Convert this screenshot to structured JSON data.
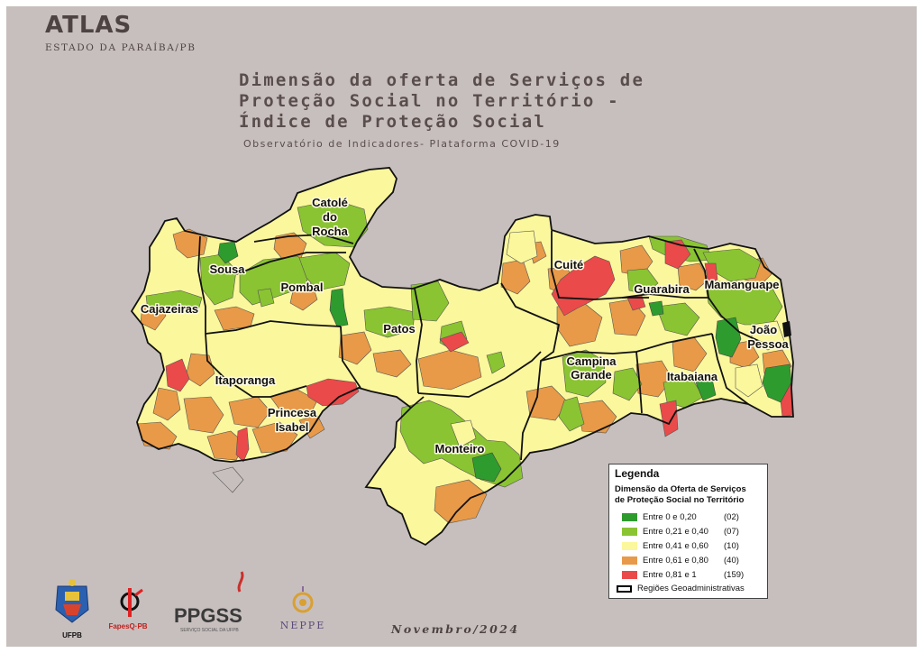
{
  "header": {
    "atlas": "ATLAS",
    "estado": "ESTADO DA PARAÍBA/PB",
    "title_lines": [
      "Dimensão da oferta de Serviços de",
      "Proteção Social no Território -",
      "Índice de Proteção Social"
    ],
    "subtitle": "Observatório de Indicadores- Plataforma COVID-19",
    "date": "Novembro/2024"
  },
  "map": {
    "region_labels": {
      "catole_1": "Catolé",
      "catole_2": "do",
      "catole_3": "Rocha",
      "sousa": "Sousa",
      "pombal": "Pombal",
      "cajazeiras": "Cajazeiras",
      "patos": "Patos",
      "itaporanga": "Itaporanga",
      "princesa_1": "Princesa",
      "princesa_2": "Isabel",
      "monteiro": "Monteiro",
      "cuite": "Cuité",
      "guarabira": "Guarabira",
      "mamanguape": "Mamanguape",
      "joao_1": "João",
      "joao_2": "Pessoa",
      "campina_1": "Campina",
      "campina_2": "Grande",
      "itabaiana": "Itabaiana"
    },
    "colors": {
      "dark_green": "#2e9b2e",
      "green": "#8ac432",
      "light_yellow": "#fbf79c",
      "orange": "#e89a48",
      "red": "#ea4a4a"
    }
  },
  "legend": {
    "title": "Legenda",
    "subtitle_1": "Dimensão da Oferta de Serviços",
    "subtitle_2": "de Proteção Social no Território",
    "items": [
      {
        "label": "Entre 0 e 0,20",
        "count": "(02)",
        "color": "#2e9b2e"
      },
      {
        "label": "Entre 0,21 e 0,40",
        "count": "(07)",
        "color": "#8ac432"
      },
      {
        "label": "Entre 0,41 e 0,60",
        "count": "(10)",
        "color": "#fbf79c"
      },
      {
        "label": "Entre 0,61 e 0,80",
        "count": "(40)",
        "color": "#e89a48"
      },
      {
        "label": "Entre 0,81 e 1",
        "count": "(159)",
        "color": "#ea4a4a"
      }
    ],
    "regions_label": "Regiões Geoadministrativas"
  },
  "logos": {
    "ufpb": "UFPB",
    "fapesq": "FapesQ·PB",
    "ppgss": "PPGSS",
    "ppgss_small": "SERVIÇO SOCIAL DA UFPB",
    "neppe": "NEPPE"
  }
}
